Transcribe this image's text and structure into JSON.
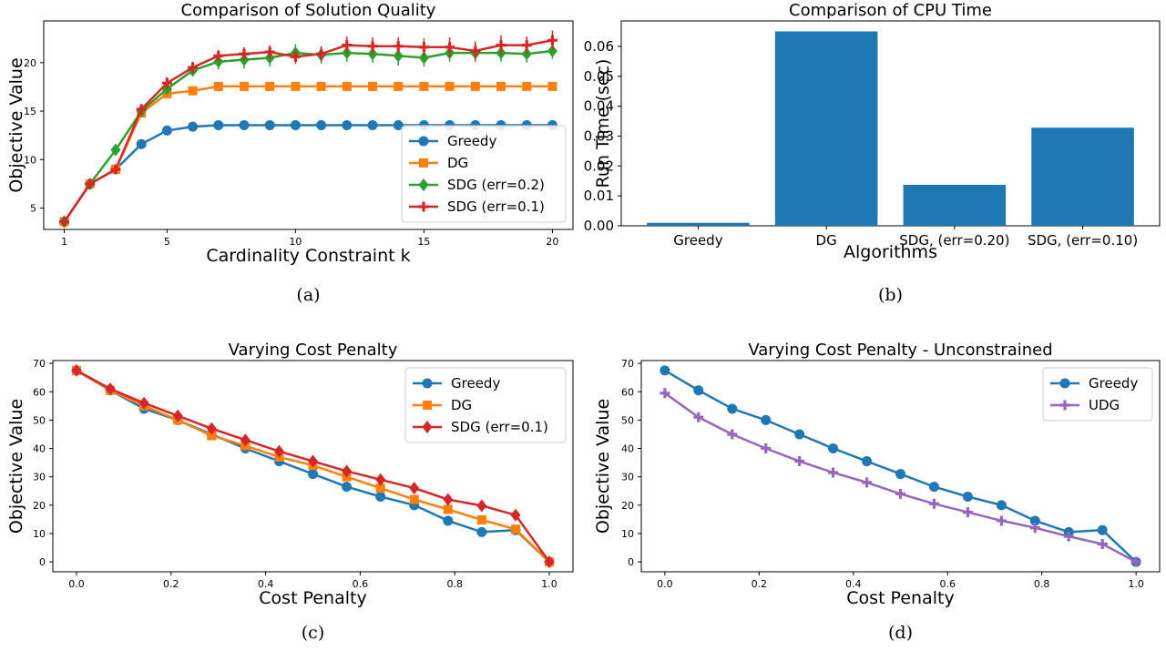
{
  "chart_data": [
    {
      "type": "line",
      "title": "Comparison of Solution Quality",
      "xlabel": "Cardinality Constraint k",
      "ylabel": "Objective Value",
      "caption": "(a)",
      "xlim": [
        0.2,
        20.8
      ],
      "ylim": [
        2.8,
        24.3
      ],
      "xticks": [
        1,
        5,
        10,
        15,
        20
      ],
      "yticks": [
        5,
        10,
        15,
        20
      ],
      "legend": "lower-right",
      "x": [
        1,
        2,
        3,
        4,
        5,
        6,
        7,
        8,
        9,
        10,
        11,
        12,
        13,
        14,
        15,
        16,
        17,
        18,
        19,
        20
      ],
      "series": [
        {
          "name": "Greedy",
          "color": "#1f77b4",
          "marker": "circle",
          "values": [
            3.6,
            7.5,
            9.0,
            11.6,
            13.0,
            13.4,
            13.55,
            13.55,
            13.55,
            13.55,
            13.55,
            13.55,
            13.55,
            13.55,
            13.55,
            13.55,
            13.55,
            13.55,
            13.55,
            13.55
          ]
        },
        {
          "name": "DG",
          "color": "#ff7f0e",
          "marker": "square",
          "values": [
            3.6,
            7.5,
            9.0,
            14.8,
            16.8,
            17.1,
            17.55,
            17.55,
            17.55,
            17.55,
            17.55,
            17.55,
            17.55,
            17.55,
            17.55,
            17.55,
            17.55,
            17.55,
            17.55,
            17.55
          ]
        },
        {
          "name": "SDG (err=0.2)",
          "color": "#2ca02c",
          "marker": "diamond",
          "values": [
            3.6,
            7.5,
            11.0,
            15.0,
            17.3,
            19.2,
            20.1,
            20.3,
            20.5,
            21.0,
            20.8,
            21.0,
            20.9,
            20.7,
            20.5,
            21.0,
            21.0,
            21.0,
            20.9,
            21.2
          ],
          "err": [
            0.2,
            0.3,
            0.5,
            0.6,
            0.6,
            0.6,
            0.8,
            0.9,
            0.9,
            0.9,
            0.9,
            0.9,
            0.9,
            1.0,
            0.9,
            0.9,
            0.9,
            0.9,
            0.9,
            0.8
          ]
        },
        {
          "name": "SDG (err=0.1)",
          "color": "#d62728",
          "marker": "plus",
          "values": [
            3.6,
            7.5,
            9.0,
            15.2,
            17.9,
            19.5,
            20.7,
            20.9,
            21.1,
            20.6,
            20.9,
            21.8,
            21.7,
            21.7,
            21.6,
            21.6,
            21.2,
            21.8,
            21.8,
            22.3
          ],
          "err": [
            0.2,
            0.3,
            0.3,
            0.5,
            0.6,
            0.6,
            0.6,
            0.7,
            0.7,
            0.7,
            0.8,
            0.9,
            0.9,
            0.9,
            0.9,
            1.0,
            1.0,
            1.0,
            0.9,
            1.0
          ]
        }
      ]
    },
    {
      "type": "bar",
      "title": "Comparison of CPU Time",
      "xlabel": "Algorithms",
      "ylabel": "Run Time (sec)",
      "caption": "(b)",
      "categories": [
        "Greedy",
        "DG",
        "SDG, (err=0.20)",
        "SDG, (err=0.10)"
      ],
      "values": [
        0.001,
        0.065,
        0.0137,
        0.0328
      ],
      "ylim": [
        0,
        0.0685
      ],
      "yticks": [
        "0.00",
        "0.01",
        "0.02",
        "0.03",
        "0.04",
        "0.05",
        "0.06"
      ],
      "color": "#1f77b4"
    },
    {
      "type": "line",
      "title": "Varying Cost Penalty",
      "xlabel": "Cost Penalty",
      "ylabel": "Objective Value",
      "caption": "(c)",
      "xlim": [
        -0.05,
        1.05
      ],
      "ylim": [
        -3.5,
        71
      ],
      "xticks": [
        "0.0",
        "0.2",
        "0.4",
        "0.6",
        "0.8",
        "1.0"
      ],
      "yticks": [
        "0",
        "10",
        "20",
        "30",
        "40",
        "50",
        "60",
        "70"
      ],
      "legend": "top-right",
      "x": [
        0,
        0.0714,
        0.1429,
        0.2143,
        0.2857,
        0.3571,
        0.4286,
        0.5,
        0.5714,
        0.6429,
        0.7143,
        0.7857,
        0.8571,
        0.9286,
        1.0
      ],
      "series": [
        {
          "name": "Greedy",
          "color": "#1f77b4",
          "marker": "circle",
          "values": [
            67.5,
            60.5,
            54,
            50,
            45,
            40,
            35.5,
            31,
            26.5,
            23,
            20,
            14.5,
            10.5,
            11.2,
            0
          ]
        },
        {
          "name": "DG",
          "color": "#ff7f0e",
          "marker": "square",
          "values": [
            67.5,
            60.5,
            55,
            50,
            44.5,
            41,
            37,
            34,
            30,
            26,
            22,
            18.5,
            14.8,
            11.5,
            0
          ]
        },
        {
          "name": "SDG (err=0.1)",
          "color": "#d62728",
          "marker": "diamond",
          "values": [
            67.5,
            61,
            56,
            51.5,
            47,
            43,
            39,
            35.5,
            32,
            29,
            26,
            22,
            19.8,
            16.5,
            0
          ]
        }
      ]
    },
    {
      "type": "line",
      "title": "Varying Cost Penalty - Unconstrained",
      "xlabel": "Cost Penalty",
      "ylabel": "Objective Value",
      "caption": "(d)",
      "xlim": [
        -0.05,
        1.05
      ],
      "ylim": [
        -3.5,
        71
      ],
      "xticks": [
        "0.0",
        "0.2",
        "0.4",
        "0.6",
        "0.8",
        "1.0"
      ],
      "yticks": [
        "0",
        "10",
        "20",
        "30",
        "40",
        "50",
        "60",
        "70"
      ],
      "legend": "top-right",
      "x": [
        0,
        0.0714,
        0.1429,
        0.2143,
        0.2857,
        0.3571,
        0.4286,
        0.5,
        0.5714,
        0.6429,
        0.7143,
        0.7857,
        0.8571,
        0.9286,
        1.0
      ],
      "series": [
        {
          "name": "Greedy",
          "color": "#1f77b4",
          "marker": "circle",
          "values": [
            67.5,
            60.5,
            54,
            50,
            45,
            40,
            35.5,
            31,
            26.5,
            23,
            20,
            14.5,
            10.5,
            11.2,
            0
          ]
        },
        {
          "name": "UDG",
          "color": "#9467bd",
          "marker": "plus",
          "values": [
            59.5,
            51,
            45,
            40,
            35.5,
            31.5,
            28,
            24,
            20.5,
            17.5,
            14.5,
            12,
            9,
            6.3,
            0
          ]
        }
      ]
    }
  ]
}
